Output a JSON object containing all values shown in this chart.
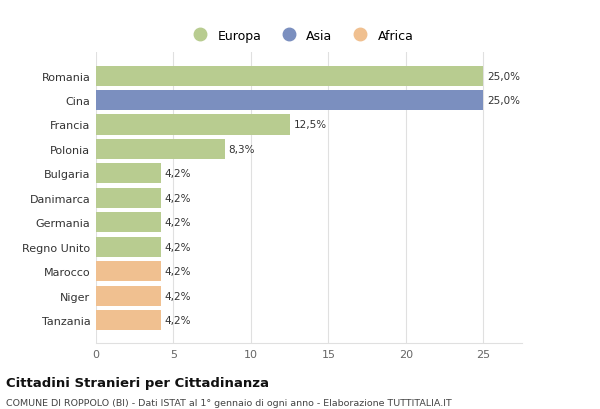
{
  "categories": [
    "Tanzania",
    "Niger",
    "Marocco",
    "Regno Unito",
    "Germania",
    "Danimarca",
    "Bulgaria",
    "Polonia",
    "Francia",
    "Cina",
    "Romania"
  ],
  "values": [
    4.2,
    4.2,
    4.2,
    4.2,
    4.2,
    4.2,
    4.2,
    8.3,
    12.5,
    25.0,
    25.0
  ],
  "colors": [
    "#f0c090",
    "#f0c090",
    "#f0c090",
    "#b8cc90",
    "#b8cc90",
    "#b8cc90",
    "#b8cc90",
    "#b8cc90",
    "#b8cc90",
    "#7b8fbf",
    "#b8cc90"
  ],
  "labels": [
    "4,2%",
    "4,2%",
    "4,2%",
    "4,2%",
    "4,2%",
    "4,2%",
    "4,2%",
    "8,3%",
    "12,5%",
    "25,0%",
    "25,0%"
  ],
  "legend": [
    {
      "label": "Europa",
      "color": "#b8cc90"
    },
    {
      "label": "Asia",
      "color": "#7b8fbf"
    },
    {
      "label": "Africa",
      "color": "#f0c090"
    }
  ],
  "xlim": [
    0,
    27.5
  ],
  "xticks": [
    0,
    5,
    10,
    15,
    20,
    25
  ],
  "title": "Cittadini Stranieri per Cittadinanza",
  "subtitle": "COMUNE DI ROPPOLO (BI) - Dati ISTAT al 1° gennaio di ogni anno - Elaborazione TUTTITALIA.IT",
  "background_color": "#ffffff",
  "grid_color": "#e0e0e0",
  "bar_height": 0.82
}
